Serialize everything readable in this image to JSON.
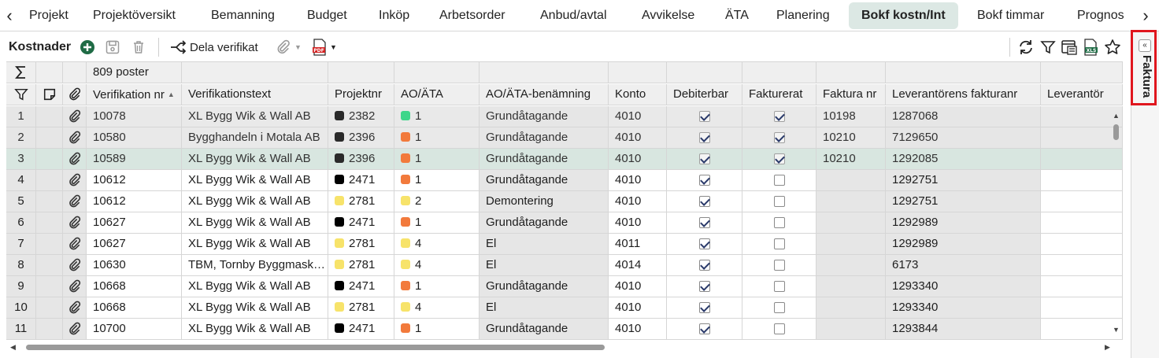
{
  "tabs": [
    {
      "label": "Projekt",
      "active": false
    },
    {
      "label": "Projektöversikt",
      "active": false
    },
    {
      "label": "Bemanning",
      "active": false
    },
    {
      "label": "Budget",
      "active": false
    },
    {
      "label": "Inköp",
      "active": false
    },
    {
      "label": "Arbetsorder",
      "active": false
    },
    {
      "label": "Anbud/avtal",
      "active": false
    },
    {
      "label": "Avvikelse",
      "active": false
    },
    {
      "label": "ÄTA",
      "active": false
    },
    {
      "label": "Planering",
      "active": false
    },
    {
      "label": "Bokf kostn/Int",
      "active": true
    },
    {
      "label": "Bokf timmar",
      "active": false
    },
    {
      "label": "Prognos",
      "active": false
    }
  ],
  "toolbar": {
    "title": "Kostnader",
    "share_label": "Dela verifikat",
    "icons": [
      "add-icon",
      "save-icon",
      "delete-icon",
      "share-icon",
      "attachment-icon",
      "pdf-icon",
      "refresh-icon",
      "filter-icon",
      "export-icon",
      "xls-icon",
      "star-icon"
    ]
  },
  "grid": {
    "count_label": "809 poster",
    "columns": [
      "",
      "",
      "",
      "Verifikation nr",
      "Verifikationstext",
      "Projektnr",
      "AO/ÄTA",
      "AO/ÄTA-benämning",
      "Konto",
      "Debiterbar",
      "Fakturerat",
      "Faktura nr",
      "Leverantörens fakturanr",
      "Leverantör"
    ],
    "rows": [
      {
        "n": "1",
        "ver": "10078",
        "text": "XL Bygg Wik & Wall AB",
        "proj": "2382",
        "pc": "#2a2a2a",
        "ao": "1",
        "ac": "#3ed68a",
        "name": "Grundåtagande",
        "konto": "4010",
        "deb": true,
        "fakt": true,
        "fnr": "10198",
        "lfnr": "1287068",
        "ro": true
      },
      {
        "n": "2",
        "ver": "10580",
        "text": "Bygghandeln i Motala AB",
        "proj": "2396",
        "pc": "#2a2a2a",
        "ao": "1",
        "ac": "#f27a3c",
        "name": "Grundåtagande",
        "konto": "4010",
        "deb": true,
        "fakt": true,
        "fnr": "10210",
        "lfnr": "7129650",
        "ro": true
      },
      {
        "n": "3",
        "ver": "10589",
        "text": "XL Bygg Wik & Wall AB",
        "proj": "2396",
        "pc": "#2a2a2a",
        "ao": "1",
        "ac": "#f27a3c",
        "name": "Grundåtagande",
        "konto": "4010",
        "deb": true,
        "fakt": true,
        "fnr": "10210",
        "lfnr": "1292085",
        "ro": true,
        "sel": true
      },
      {
        "n": "4",
        "ver": "10612",
        "text": "XL Bygg Wik & Wall AB",
        "proj": "2471",
        "pc": "#000000",
        "ao": "1",
        "ac": "#f27a3c",
        "name": "Grundåtagande",
        "konto": "4010",
        "deb": true,
        "fakt": false,
        "fnr": "",
        "lfnr": "1292751"
      },
      {
        "n": "5",
        "ver": "10612",
        "text": "XL Bygg Wik & Wall AB",
        "proj": "2781",
        "pc": "#f7e36a",
        "ao": "2",
        "ac": "#f7e36a",
        "name": "Demontering",
        "konto": "4010",
        "deb": true,
        "fakt": false,
        "fnr": "",
        "lfnr": "1292751"
      },
      {
        "n": "6",
        "ver": "10627",
        "text": "XL Bygg Wik & Wall AB",
        "proj": "2471",
        "pc": "#000000",
        "ao": "1",
        "ac": "#f27a3c",
        "name": "Grundåtagande",
        "konto": "4010",
        "deb": true,
        "fakt": false,
        "fnr": "",
        "lfnr": "1292989"
      },
      {
        "n": "7",
        "ver": "10627",
        "text": "XL Bygg Wik & Wall AB",
        "proj": "2781",
        "pc": "#f7e36a",
        "ao": "4",
        "ac": "#f7e36a",
        "name": "El",
        "konto": "4011",
        "deb": true,
        "fakt": false,
        "fnr": "",
        "lfnr": "1292989"
      },
      {
        "n": "8",
        "ver": "10630",
        "text": "TBM, Tornby Byggmaskiner AB",
        "proj": "2781",
        "pc": "#f7e36a",
        "ao": "4",
        "ac": "#f7e36a",
        "name": "El",
        "konto": "4014",
        "deb": true,
        "fakt": false,
        "fnr": "",
        "lfnr": "6173"
      },
      {
        "n": "9",
        "ver": "10668",
        "text": "XL Bygg Wik & Wall AB",
        "proj": "2471",
        "pc": "#000000",
        "ao": "1",
        "ac": "#f27a3c",
        "name": "Grundåtagande",
        "konto": "4010",
        "deb": true,
        "fakt": false,
        "fnr": "",
        "lfnr": "1293340"
      },
      {
        "n": "10",
        "ver": "10668",
        "text": "XL Bygg Wik & Wall AB",
        "proj": "2781",
        "pc": "#f7e36a",
        "ao": "4",
        "ac": "#f7e36a",
        "name": "El",
        "konto": "4010",
        "deb": true,
        "fakt": false,
        "fnr": "",
        "lfnr": "1293340"
      },
      {
        "n": "11",
        "ver": "10700",
        "text": "XL Bygg Wik & Wall AB",
        "proj": "2471",
        "pc": "#000000",
        "ao": "1",
        "ac": "#f27a3c",
        "name": "Grundåtagande",
        "konto": "4010",
        "deb": true,
        "fakt": false,
        "fnr": "",
        "lfnr": "1293844"
      }
    ]
  },
  "sidebar": {
    "label": "Faktura"
  }
}
